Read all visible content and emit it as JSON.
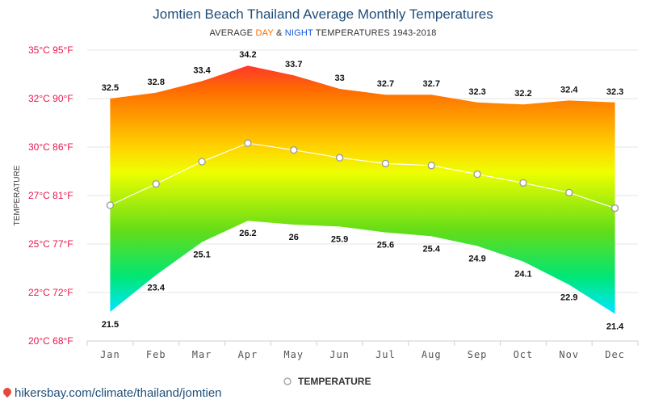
{
  "header": {
    "title": "Jomtien Beach Thailand Average Monthly Temperatures",
    "subtitle_prefix": "AVERAGE ",
    "subtitle_day": "DAY",
    "subtitle_amp": " & ",
    "subtitle_night": "NIGHT",
    "subtitle_suffix": " TEMPERATURES 1943-2018"
  },
  "footer": {
    "link_text": "hikersbay.com/climate/thailand/jomtien"
  },
  "chart_data": {
    "type": "area",
    "title": "Jomtien Beach Thailand Average Monthly Temperatures",
    "ylabel": "TEMPERATURE",
    "ylim": [
      20,
      35
    ],
    "yticks": [
      {
        "value": 35,
        "label": "35°C 95°F"
      },
      {
        "value": 32.5,
        "label": "32°C 90°F"
      },
      {
        "value": 30,
        "label": "30°C 86°F"
      },
      {
        "value": 27.5,
        "label": "27°C 81°F"
      },
      {
        "value": 25,
        "label": "25°C 77°F"
      },
      {
        "value": 22.5,
        "label": "22°C 72°F"
      },
      {
        "value": 20,
        "label": "20°C 68°F"
      }
    ],
    "categories": [
      "Jan",
      "Feb",
      "Mar",
      "Apr",
      "May",
      "Jun",
      "Jul",
      "Aug",
      "Sep",
      "Oct",
      "Nov",
      "Dec"
    ],
    "series": [
      {
        "name": "Day",
        "values": [
          32.5,
          32.8,
          33.4,
          34.2,
          33.7,
          33,
          32.7,
          32.7,
          32.3,
          32.2,
          32.4,
          32.3
        ]
      },
      {
        "name": "Night",
        "values": [
          21.5,
          23.4,
          25.1,
          26.2,
          26,
          25.9,
          25.6,
          25.4,
          24.9,
          24.1,
          22.9,
          21.4
        ]
      },
      {
        "name": "TEMPERATURE",
        "values": [
          27.0,
          28.1,
          29.25,
          30.2,
          29.85,
          29.45,
          29.15,
          29.05,
          28.6,
          28.15,
          27.65,
          26.85
        ]
      }
    ],
    "legend": [
      "TEMPERATURE"
    ],
    "legend_position": "bottom-center",
    "grid": true
  },
  "colors": {
    "gradient": [
      "#ff1744",
      "#ff6d00",
      "#ffd600",
      "#eeff00",
      "#64dd17",
      "#00e676",
      "#00e5ff",
      "#1e40ff"
    ],
    "ylabel": "#e6194b",
    "title": "#1f4e79"
  }
}
